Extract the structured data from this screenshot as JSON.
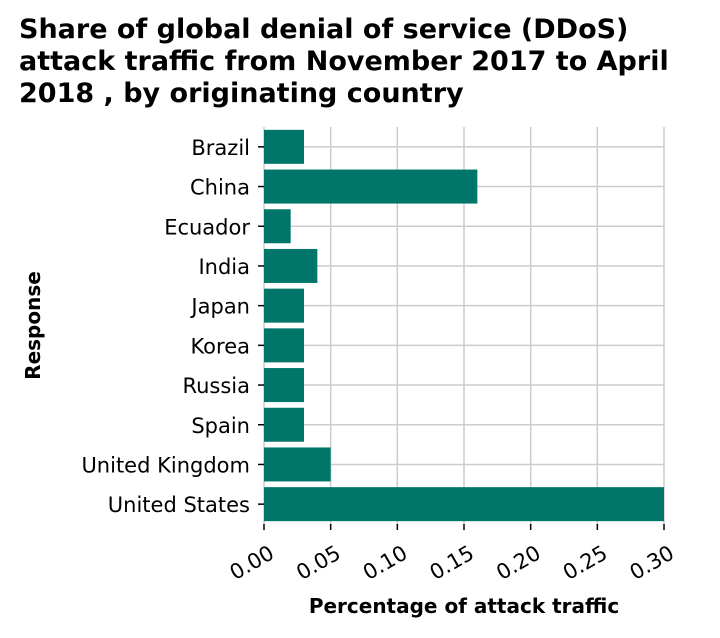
{
  "chart_data": {
    "type": "bar",
    "orientation": "horizontal",
    "title": "Share of global denial of service (DDoS) attack traffic from November 2017 to April 2018 , by originating country",
    "xlabel": "Percentage of attack traffic",
    "ylabel": "Response",
    "categories": [
      "Brazil",
      "China",
      "Ecuador",
      "India",
      "Japan",
      "Korea",
      "Russia",
      "Spain",
      "United Kingdom",
      "United States"
    ],
    "values": [
      0.03,
      0.16,
      0.02,
      0.04,
      0.03,
      0.03,
      0.03,
      0.03,
      0.05,
      0.3
    ],
    "xlim": [
      0,
      0.3
    ],
    "xticks": [
      "0.00",
      "0.05",
      "0.10",
      "0.15",
      "0.20",
      "0.25",
      "0.30"
    ],
    "grid": true,
    "legend": "none",
    "colors": {
      "bar": "#00766a",
      "grid": "#cccccc",
      "axis": "#000000"
    }
  }
}
